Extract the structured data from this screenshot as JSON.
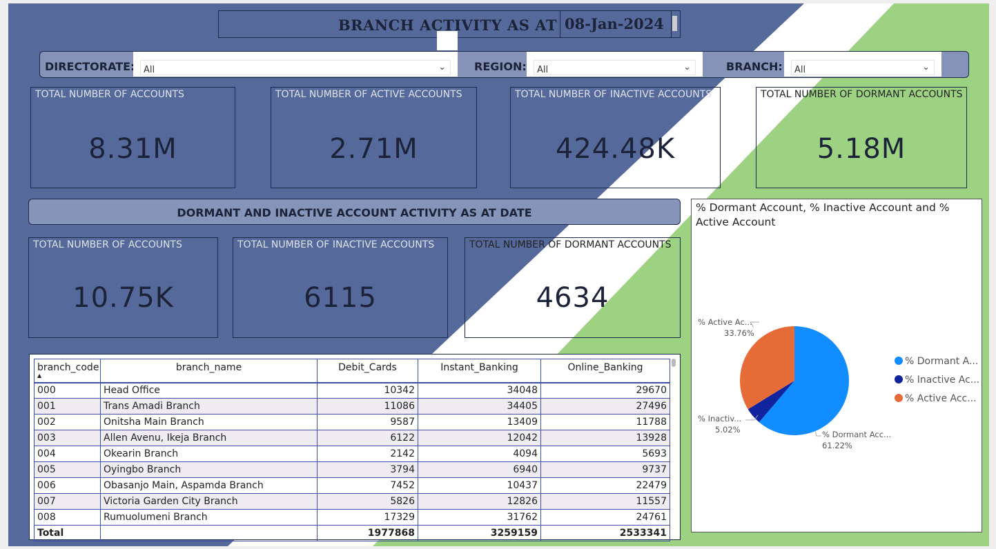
{
  "header": {
    "title": "BRANCH  ACTIVITY AS AT",
    "date": "08-Jan-2024"
  },
  "filters": [
    {
      "label": "DIRECTORATE:",
      "value": "All"
    },
    {
      "label": "REGION:",
      "value": "All"
    },
    {
      "label": "BRANCH:",
      "value": "All"
    }
  ],
  "kpis_top": [
    {
      "label": "TOTAL NUMBER OF ACCOUNTS",
      "value": "8.31M"
    },
    {
      "label": "TOTAL NUMBER OF ACTIVE ACCOUNTS",
      "value": "2.71M"
    },
    {
      "label": "TOTAL NUMBER OF INACTIVE ACCOUNTS",
      "value": "424.48K"
    },
    {
      "label": "TOTAL NUMBER OF DORMANT ACCOUNTS",
      "value": "5.18M"
    }
  ],
  "section_title": "DORMANT AND INACTIVE ACCOUNT ACTIVITY AS AT DATE",
  "kpis_bottom": [
    {
      "label": "TOTAL NUMBER OF ACCOUNTS",
      "value": "10.75K"
    },
    {
      "label": "TOTAL NUMBER OF INACTIVE ACCOUNTS",
      "value": "6115"
    },
    {
      "label": "TOTAL NUMBER OF DORMANT ACCOUNTS",
      "value": "4634"
    }
  ],
  "table": {
    "columns": [
      "branch_code",
      "branch_name",
      "Debit_Cards",
      "Instant_Banking",
      "Online_Banking"
    ],
    "sort_indicator": "▲",
    "rows": [
      [
        "000",
        "Head Office",
        "10342",
        "34048",
        "29670"
      ],
      [
        "001",
        "Trans Amadi Branch",
        "11086",
        "34405",
        "27496"
      ],
      [
        "002",
        "Onitsha Main Branch",
        "9587",
        "13409",
        "11788"
      ],
      [
        "003",
        "Allen Avenu, Ikeja Branch",
        "6122",
        "12042",
        "13928"
      ],
      [
        "004",
        "Okearin Branch",
        "2142",
        "4094",
        "5693"
      ],
      [
        "005",
        "Oyingbo Branch",
        "3794",
        "6940",
        "9737"
      ],
      [
        "006",
        "Obasanjo Main, Aspamda Branch",
        "7452",
        "10437",
        "22479"
      ],
      [
        "007",
        "Victoria Garden City Branch",
        "5826",
        "12826",
        "11557"
      ],
      [
        "008",
        "Rumuolumeni Branch",
        "17329",
        "31762",
        "24761"
      ]
    ],
    "total": [
      "Total",
      "",
      "1977868",
      "3259159",
      "2533341"
    ]
  },
  "chart_data": {
    "type": "pie",
    "title": "% Dormant Account, % Inactive Account and % Active Account",
    "slices": [
      {
        "name": "% Dormant Account",
        "label": "% Dormant Acc...",
        "legend": "% Dormant A...",
        "value": 61.22,
        "display": "61.22%",
        "color": "#118dff"
      },
      {
        "name": "% Inactive Account",
        "label": "% Inactiv...",
        "legend": "% Inactive Ac...",
        "value": 5.02,
        "display": "5.02%",
        "color": "#12239e"
      },
      {
        "name": "% Active Account",
        "label": "% Active Ac...",
        "legend": "% Active Acc...",
        "value": 33.76,
        "display": "33.76%",
        "color": "#e66c37"
      }
    ],
    "legend_position": "right"
  }
}
